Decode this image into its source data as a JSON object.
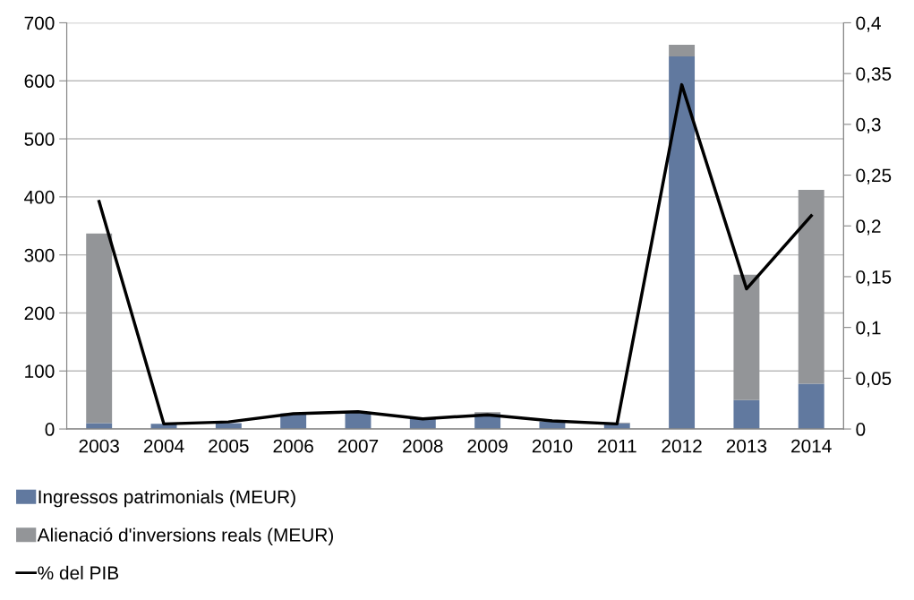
{
  "chart_data": {
    "type": "bar",
    "stacked": true,
    "categories": [
      "2003",
      "2004",
      "2005",
      "2006",
      "2007",
      "2008",
      "2009",
      "2010",
      "2011",
      "2012",
      "2013",
      "2014"
    ],
    "series": [
      {
        "name": "Ingressos patrimonials (MEUR)",
        "color": "#61799f",
        "values": [
          10,
          9,
          10,
          27,
          28,
          18,
          26,
          13,
          10,
          642,
          50,
          78
        ]
      },
      {
        "name": "Alienació d'inversions reals (MEUR)",
        "color": "#939598",
        "values": [
          327,
          null,
          null,
          null,
          null,
          1,
          3,
          null,
          1,
          20,
          216,
          334
        ]
      },
      {
        "name": "% del PIB",
        "type": "line",
        "axis": "y2",
        "color": "#000000",
        "values": [
          0.224,
          0.005,
          0.007,
          0.015,
          0.017,
          0.01,
          0.014,
          0.008,
          0.005,
          0.339,
          0.138,
          0.21
        ]
      }
    ],
    "ylim": [
      0,
      700
    ],
    "yticks": [
      0,
      100,
      200,
      300,
      400,
      500,
      600,
      700
    ],
    "y2lim": [
      0,
      0.4
    ],
    "y2ticks": [
      {
        "value": 0,
        "label": "0"
      },
      {
        "value": 0.05,
        "label": "0,05"
      },
      {
        "value": 0.1,
        "label": "0,1"
      },
      {
        "value": 0.15,
        "label": "0,15"
      },
      {
        "value": 0.2,
        "label": "0,2"
      },
      {
        "value": 0.25,
        "label": "0,25"
      },
      {
        "value": 0.3,
        "label": "0,3"
      },
      {
        "value": 0.35,
        "label": "0,35"
      },
      {
        "value": 0.4,
        "label": "0,4"
      }
    ],
    "grid": "y",
    "legend": "bottom"
  }
}
